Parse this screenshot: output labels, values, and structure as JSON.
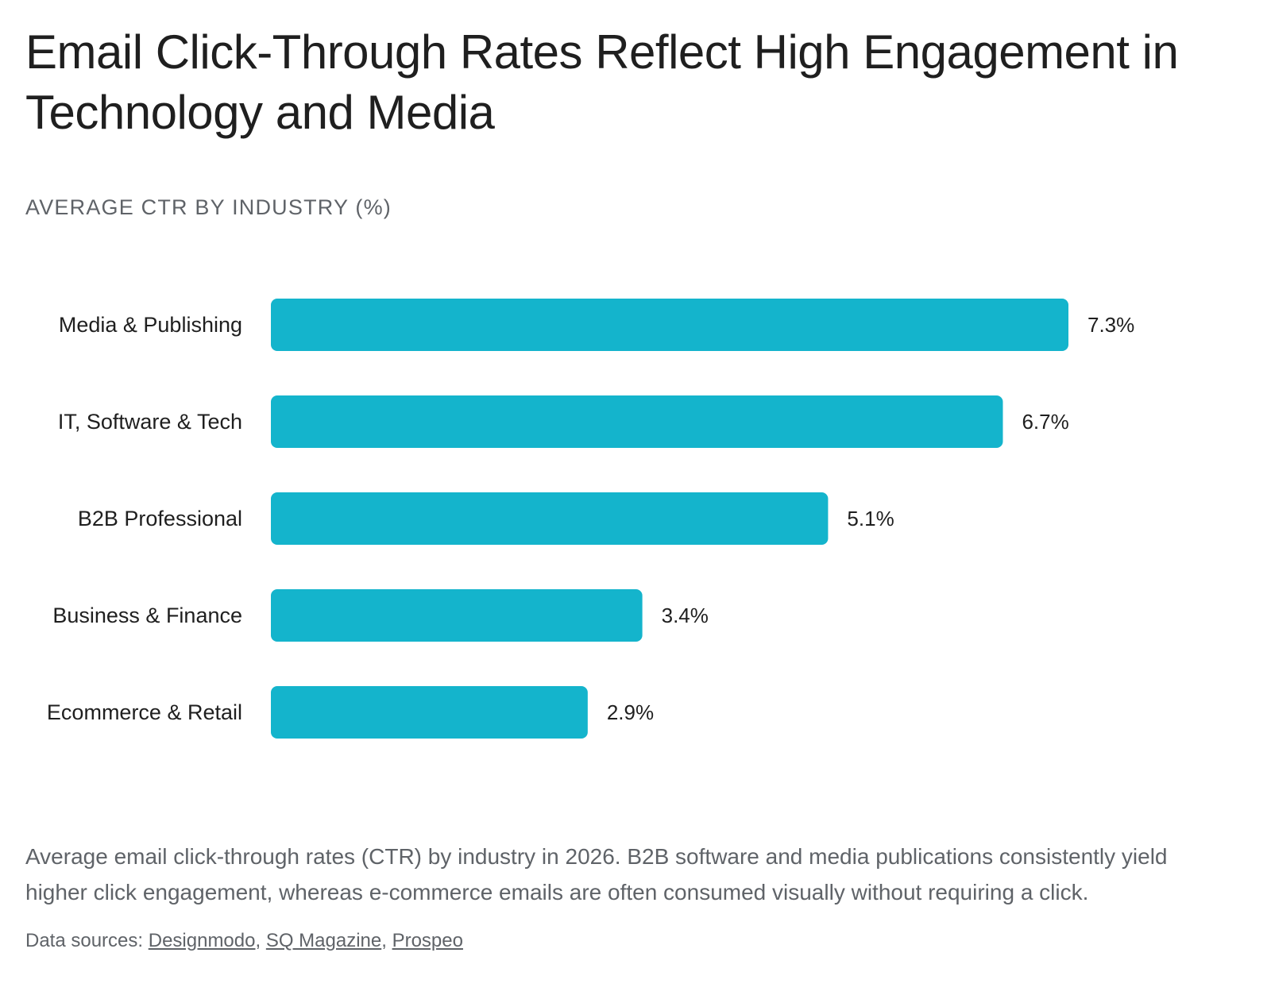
{
  "title": "Email Click-Through Rates Reflect High Engagement in Technology and Media",
  "subtitle": "AVERAGE CTR BY INDUSTRY (%)",
  "caption": "Average email click-through rates (CTR) by industry in 2026. B2B software and media publications consistently yield higher click engagement, whereas e-commerce emails are often consumed visually without requiring a click.",
  "sources": {
    "prefix": "Data sources: ",
    "links": [
      "Designmodo",
      "SQ Magazine",
      "Prospeo"
    ]
  },
  "colors": {
    "bar": "#14b4cc",
    "label": "#1f1f1f",
    "muted": "#5f6368"
  },
  "chart_data": {
    "type": "bar",
    "orientation": "horizontal",
    "categories": [
      "Media & Publishing",
      "IT, Software & Tech",
      "B2B Professional",
      "Business & Finance",
      "Ecommerce & Retail"
    ],
    "values": [
      7.3,
      6.7,
      5.1,
      3.4,
      2.9
    ],
    "value_labels": [
      "7.3%",
      "6.7%",
      "5.1%",
      "3.4%",
      "2.9%"
    ],
    "title": "AVERAGE CTR BY INDUSTRY (%)",
    "xlim": [
      0,
      7.3
    ],
    "grid": false,
    "legend": "none"
  }
}
